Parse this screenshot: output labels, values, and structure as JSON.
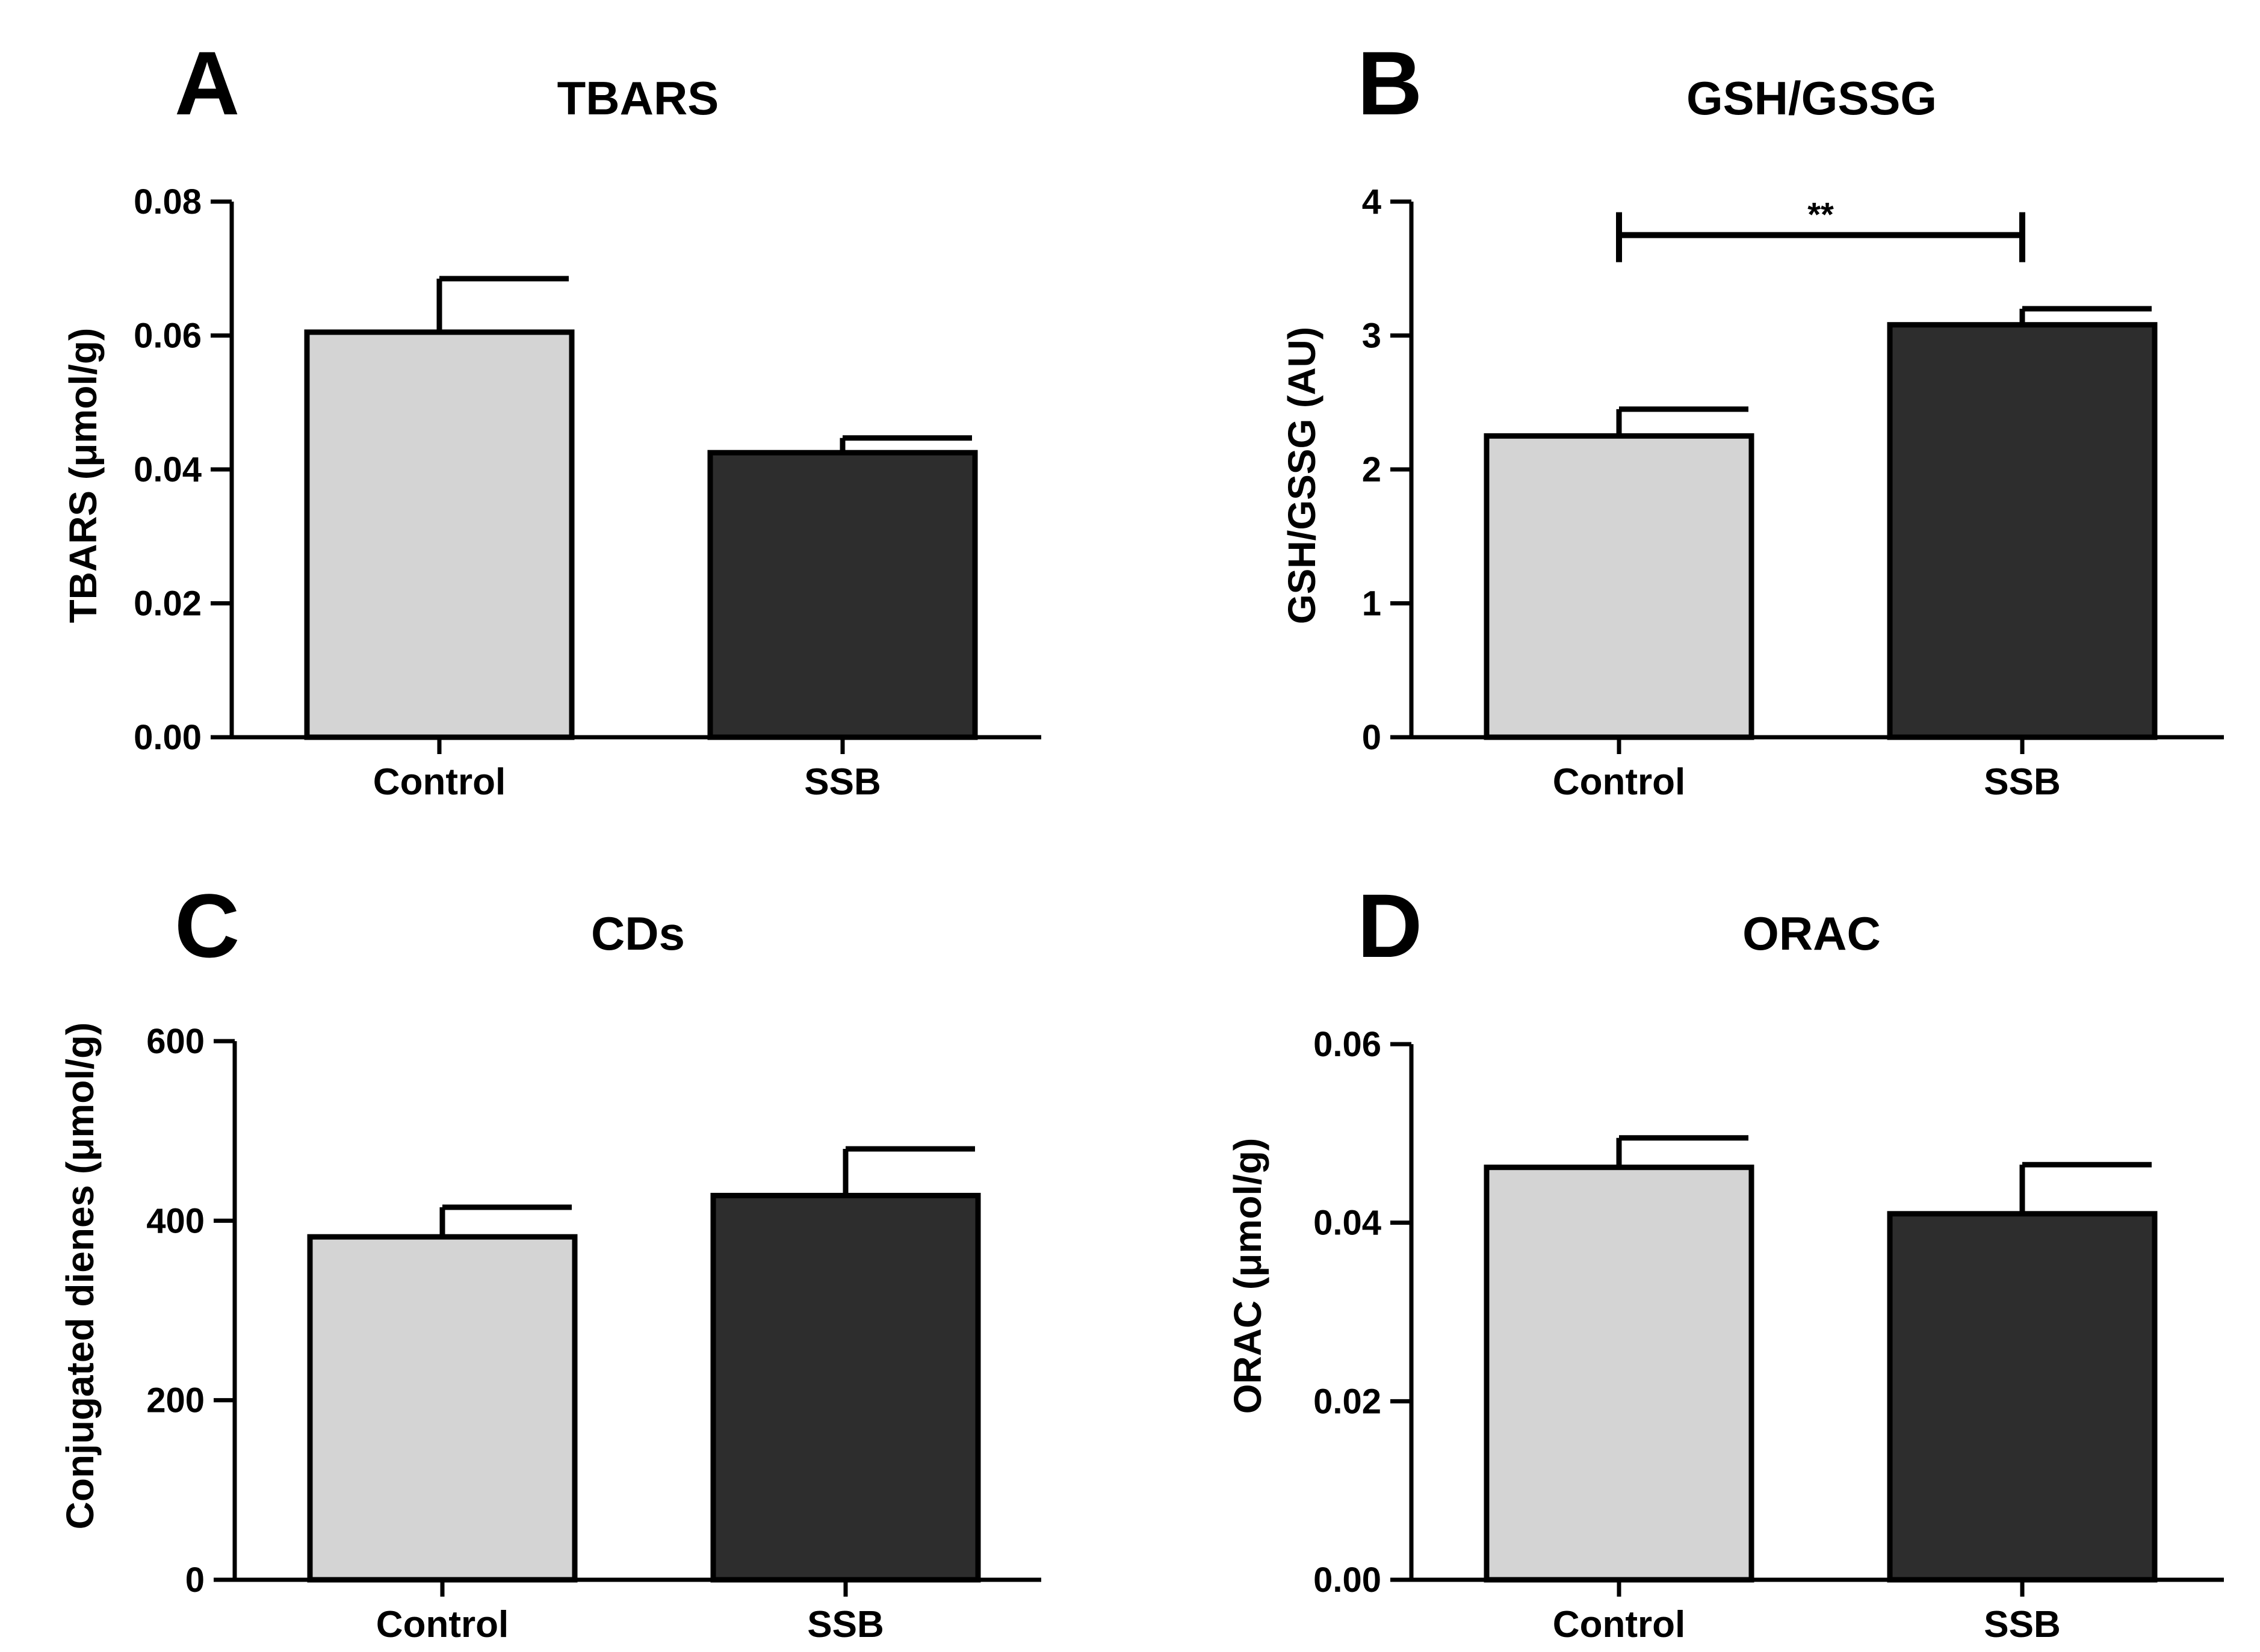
{
  "figure": {
    "panels": [
      {
        "letter": "A",
        "title": "TBARS",
        "ylabel": "TBARS (μmol/g)",
        "yticks": [
          "0.00",
          "0.02",
          "0.04",
          "0.06",
          "0.08"
        ]
      },
      {
        "letter": "B",
        "title": "GSH/GSSG",
        "ylabel": "GSH/GSSG (AU)",
        "yticks": [
          "0",
          "1",
          "2",
          "3",
          "4"
        ],
        "significance": "**"
      },
      {
        "letter": "C",
        "title": "CDs",
        "ylabel": "Conjugated dienes (μmol/g)",
        "yticks": [
          "0",
          "200",
          "400",
          "600"
        ]
      },
      {
        "letter": "D",
        "title": "ORAC",
        "ylabel": "ORAC (μmol/g)",
        "yticks": [
          "0.00",
          "0.02",
          "0.04",
          "0.06"
        ]
      }
    ]
  },
  "chart_data": [
    {
      "type": "bar",
      "title": "TBARS",
      "categories": [
        "Control",
        "SSB"
      ],
      "values": [
        0.0605,
        0.0425
      ],
      "errors": [
        0.008,
        0.0022
      ],
      "ylabel": "TBARS (μmol/g)",
      "xlabel": "",
      "ylim": [
        0,
        0.08
      ],
      "colors": [
        "#d4d4d4",
        "#2d2d2d"
      ]
    },
    {
      "type": "bar",
      "title": "GSH/GSSG",
      "categories": [
        "Control",
        "SSB"
      ],
      "values": [
        2.25,
        3.08
      ],
      "errors": [
        0.2,
        0.12
      ],
      "ylabel": "GSH/GSSG (AU)",
      "xlabel": "",
      "ylim": [
        0,
        4
      ],
      "colors": [
        "#d4d4d4",
        "#2d2d2d"
      ],
      "significance": {
        "between": [
          "Control",
          "SSB"
        ],
        "label": "**",
        "level": 3.75
      }
    },
    {
      "type": "bar",
      "title": "CDs",
      "categories": [
        "Control",
        "SSB"
      ],
      "values": [
        382,
        428
      ],
      "errors": [
        33,
        52
      ],
      "ylabel": "Conjugated dienes (μmol/g)",
      "xlabel": "",
      "ylim": [
        0,
        600
      ],
      "colors": [
        "#d4d4d4",
        "#2d2d2d"
      ]
    },
    {
      "type": "bar",
      "title": "ORAC",
      "categories": [
        "Control",
        "SSB"
      ],
      "values": [
        0.0462,
        0.041
      ],
      "errors": [
        0.0033,
        0.0055
      ],
      "ylabel": "ORAC (μmol/g)",
      "xlabel": "",
      "ylim": [
        0,
        0.06
      ],
      "colors": [
        "#d4d4d4",
        "#2d2d2d"
      ]
    }
  ]
}
